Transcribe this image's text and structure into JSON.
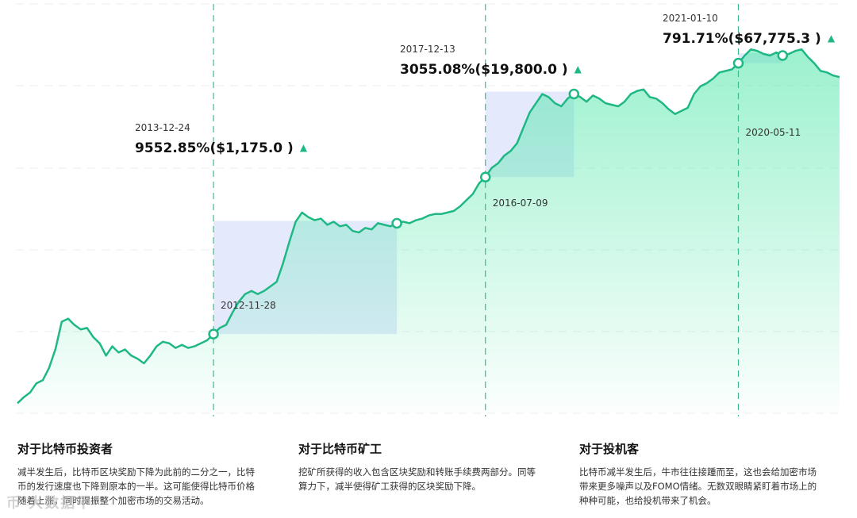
{
  "chart_data": {
    "type": "area",
    "title": "",
    "xlabel": "",
    "ylabel": "",
    "accent_color": "#1fb885",
    "fill_color": "#4ae6a6",
    "highlight_color": "#dfe6fb",
    "grid": true,
    "series": [
      {
        "values": [
          0.07,
          0.11,
          0.14,
          0.2,
          0.22,
          0.3,
          0.42,
          0.6,
          0.62,
          0.58,
          0.55,
          0.56,
          0.5,
          0.46,
          0.38,
          0.44,
          0.4,
          0.42,
          0.38,
          0.36,
          0.33,
          0.38,
          0.44,
          0.47,
          0.46,
          0.43,
          0.45,
          0.43,
          0.44,
          0.46,
          0.48,
          0.52,
          0.56,
          0.58,
          0.66,
          0.73,
          0.78,
          0.8,
          0.78,
          0.8,
          0.83,
          0.86,
          0.98,
          1.12,
          1.25,
          1.31,
          1.28,
          1.26,
          1.27,
          1.23,
          1.25,
          1.22,
          1.23,
          1.19,
          1.18,
          1.21,
          1.2,
          1.24,
          1.23,
          1.22,
          1.24,
          1.25,
          1.24,
          1.26,
          1.27,
          1.29,
          1.3,
          1.3,
          1.31,
          1.32,
          1.35,
          1.39,
          1.43,
          1.5,
          1.54,
          1.6,
          1.63,
          1.68,
          1.71,
          1.76,
          1.86,
          1.96,
          2.02,
          2.08,
          2.06,
          2.02,
          2.0,
          2.05,
          2.08,
          2.06,
          2.03,
          2.07,
          2.05,
          2.02,
          2.01,
          2.0,
          2.03,
          2.08,
          2.1,
          2.11,
          2.06,
          2.05,
          2.02,
          1.98,
          1.95,
          1.97,
          1.99,
          2.08,
          2.13,
          2.15,
          2.18,
          2.22,
          2.23,
          2.24,
          2.28,
          2.33,
          2.37,
          2.36,
          2.34,
          2.33,
          2.35,
          2.33,
          2.34,
          2.36,
          2.37,
          2.32,
          2.28,
          2.23,
          2.22,
          2.2,
          2.19
        ]
      }
    ],
    "annotations": [
      {
        "start_date": "2012-11-28",
        "peak_date": "2013-12-24",
        "peak_text": "9552.85%($1,175.0 )",
        "arrow": "▲"
      },
      {
        "start_date": "2016-07-09",
        "peak_date": "2017-12-13",
        "peak_text": "3055.08%($19,800.0 )",
        "arrow": "▲"
      },
      {
        "start_date": "2020-05-11",
        "peak_date": "2021-01-10",
        "peak_text": "791.71%($67,775.3 )",
        "arrow": "▲"
      }
    ]
  },
  "sections": [
    {
      "title": "对于比特币投资者",
      "lines": [
        "减半发生后，比特币区块奖励下降为此前的二分之一，比特",
        "币的发行速度也下降到原本的一半。这可能使得比特币价格",
        "随着上涨，同时提振整个加密市场的交易活动。"
      ]
    },
    {
      "title": "对于比特币矿工",
      "lines": [
        "挖矿所获得的收入包含区块奖励和转账手续费两部分。同等",
        "算力下，减半使得矿工获得的区块奖励下降。"
      ]
    },
    {
      "title": "对于投机客",
      "lines": [
        "比特币减半发生后，牛市往往接踵而至，这也会给加密市场",
        "带来更多噪声以及FOMO情绪。无数双眼睛紧盯着市场上的",
        "种种可能，也给投机带来了机会。"
      ]
    }
  ],
  "watermark": "币 大数据平"
}
